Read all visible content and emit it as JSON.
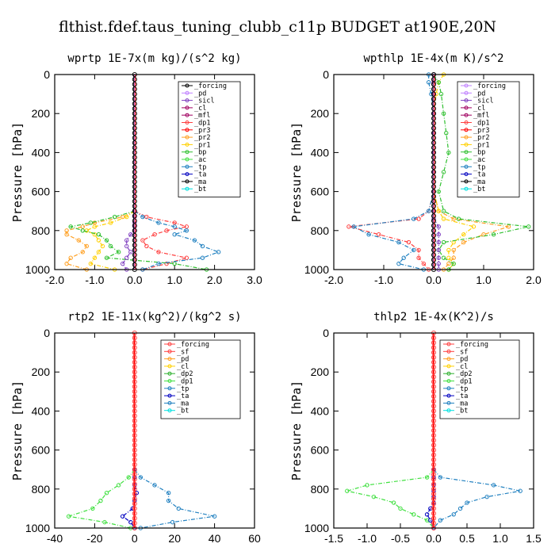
{
  "figure_title": "flthist.fdef.taus_tuning_clubb_c11p  BUDGET at190E,20N",
  "colors": {
    "_forcing": "#000000",
    "_pd": "#c080ff",
    "_sicl": "#8040c0",
    "_cl": "#ff80ff",
    "_mfl": "#a00060",
    "_dp1": "#ff4040",
    "_pr3": "#ff0000",
    "_pr2": "#ff9f20",
    "_pr1": "#ffd000",
    "_bp": "#30c030",
    "_ac": "#40e040",
    "_tp": "#2080c0",
    "_ta": "#0000c0",
    "_ma": "#000000",
    "_bt": "#00e0e0",
    "_sf": "#ff4040",
    "_dp2": "#30b030"
  },
  "chart_data": [
    {
      "type": "line",
      "title": "wprtp  1E-7x(m kg)/(s^2 kg)",
      "ylabel": "Pressure [hPa]",
      "xlim": [
        -2.0,
        3.0
      ],
      "ylim": [
        1000,
        0
      ],
      "xticks": [
        "-2.0",
        "-1.0",
        "0.0",
        "1.0",
        "2.0",
        "3.0"
      ],
      "yticks": [
        "0",
        "200",
        "400",
        "600",
        "800",
        "1000"
      ],
      "legend_entries": [
        "_forcing",
        "_pd",
        "_sicl",
        "_cl",
        "_mfl",
        "_dp1",
        "_pr3",
        "_pr2",
        "_pr1",
        "_bp",
        "_ac",
        "_tp",
        "_ta",
        "_ma",
        "_bt"
      ],
      "legend_colors": [
        "#000000",
        "#c080ff",
        "#8040c0",
        "#a00060",
        "#a00060",
        "#ff4040",
        "#ff0000",
        "#ff9f20",
        "#ffd000",
        "#30c030",
        "#40e040",
        "#2080c0",
        "#0000c0",
        "#000000",
        "#00e0e0"
      ],
      "pressure": [
        700,
        730,
        760,
        780,
        800,
        820,
        850,
        880,
        910,
        940,
        970,
        1000
      ],
      "series": [
        {
          "name": "_dp1",
          "color": "#ff4040",
          "values": [
            0,
            0.3,
            1.0,
            1.3,
            0.8,
            0.5,
            0.2,
            0.3,
            0.6,
            1.3,
            0.8,
            0.2
          ]
        },
        {
          "name": "_pr2",
          "color": "#ff9f20",
          "values": [
            0,
            -0.3,
            -1.0,
            -1.3,
            -1.7,
            -1.7,
            -1.4,
            -1.2,
            -1.3,
            -1.6,
            -1.7,
            -1.2
          ]
        },
        {
          "name": "_pr1",
          "color": "#ffd000",
          "values": [
            0,
            -0.2,
            -0.6,
            -1.0,
            -1.2,
            -1.0,
            -0.9,
            -0.8,
            -0.9,
            -1.0,
            -1.1,
            -0.5
          ]
        },
        {
          "name": "_bp",
          "color": "#30c030",
          "values": [
            0,
            -0.5,
            -1.1,
            -1.6,
            -1.3,
            -0.9,
            -0.7,
            -0.6,
            -0.4,
            -0.7,
            1.0,
            1.8
          ]
        },
        {
          "name": "_tp",
          "color": "#2080c0",
          "values": [
            0,
            0.2,
            0.6,
            1.0,
            1.3,
            1.0,
            1.5,
            1.7,
            2.1,
            1.7,
            0.6,
            0.2
          ]
        },
        {
          "name": "_sicl",
          "color": "#8040c0",
          "values": [
            0,
            0,
            0,
            0,
            0,
            -0.1,
            -0.2,
            -0.2,
            -0.1,
            -0.2,
            -0.3,
            -0.2
          ]
        }
      ]
    },
    {
      "type": "line",
      "title": "wpthlp  1E-4x(m K)/s^2",
      "ylabel": "Pressure [hPa]",
      "xlim": [
        -2.0,
        2.0
      ],
      "ylim": [
        1000,
        0
      ],
      "xticks": [
        "-2.0",
        "-1.0",
        "0.0",
        "1.0",
        "2.0"
      ],
      "yticks": [
        "0",
        "200",
        "400",
        "600",
        "800",
        "1000"
      ],
      "legend_entries": [
        "_forcing",
        "_pd",
        "_sicl",
        "_cl",
        "_mfl",
        "_dp1",
        "_pr3",
        "_pr2",
        "_pr1",
        "_bp",
        "_ac",
        "_tp",
        "_ta",
        "_ma",
        "_bt"
      ],
      "legend_colors": [
        "#c080ff",
        "#c080ff",
        "#8040c0",
        "#a00060",
        "#a00060",
        "#ff4040",
        "#ff0000",
        "#ff9f20",
        "#ffd000",
        "#30c030",
        "#40e040",
        "#2080c0",
        "#0000c0",
        "#000000",
        "#00e0e0"
      ],
      "pressure": [
        0,
        40,
        100,
        200,
        300,
        400,
        500,
        600,
        700,
        740,
        780,
        820,
        860,
        900,
        940,
        970,
        1000
      ],
      "series": [
        {
          "name": "_dp1",
          "color": "#ff4040",
          "values": [
            0,
            0,
            0,
            0,
            0,
            0,
            0,
            0,
            -0.1,
            -0.3,
            -1.7,
            -1.1,
            -0.5,
            -0.3,
            -0.3,
            -0.2,
            -0.1
          ]
        },
        {
          "name": "_pr2",
          "color": "#ff9f20",
          "values": [
            0,
            0,
            0,
            0,
            0,
            0,
            0,
            0,
            0.1,
            0.4,
            1.5,
            1.0,
            0.6,
            0.4,
            0.4,
            0.3,
            0.2
          ]
        },
        {
          "name": "_pr1",
          "color": "#ffd000",
          "values": [
            0.2,
            0.1,
            0.05,
            0,
            0,
            0,
            0,
            0,
            0.1,
            0.2,
            0.8,
            0.6,
            0.4,
            0.3,
            0.3,
            0.4,
            0.3
          ]
        },
        {
          "name": "_bp",
          "color": "#30c030",
          "values": [
            0,
            0.1,
            0.15,
            0.2,
            0.25,
            0.3,
            0.2,
            0.1,
            0.2,
            0.5,
            1.9,
            1.2,
            0.2,
            0.1,
            0.2,
            0.4,
            0.3
          ]
        },
        {
          "name": "_tp",
          "color": "#2080c0",
          "values": [
            -0.1,
            -0.1,
            -0.05,
            0,
            0,
            0,
            0,
            0,
            -0.1,
            -0.4,
            -1.6,
            -1.3,
            -0.7,
            -0.4,
            -0.6,
            -0.7,
            -0.2
          ]
        },
        {
          "name": "_sicl",
          "color": "#8040c0",
          "values": [
            0,
            0,
            0,
            0,
            0,
            0,
            0,
            0,
            0,
            0,
            0.1,
            0.1,
            0.1,
            0.1,
            0.1,
            0.1,
            0.1
          ]
        }
      ]
    },
    {
      "type": "line",
      "title": "rtp2  1E-11x(kg^2)/(kg^2 s)",
      "ylabel": "Pressure [hPa]",
      "xlim": [
        -40,
        60
      ],
      "ylim": [
        1000,
        0
      ],
      "xticks": [
        "-40",
        "-20",
        "0",
        "20",
        "40",
        "60"
      ],
      "yticks": [
        "0",
        "200",
        "400",
        "600",
        "800",
        "1000"
      ],
      "legend_entries": [
        "_forcing",
        "_sf",
        "_pd",
        "_cl",
        "_dp2",
        "_dp1",
        "_tp",
        "_ta",
        "_ma",
        "_bt"
      ],
      "legend_colors": [
        "#ff4040",
        "#ff4040",
        "#ff9f20",
        "#ffd000",
        "#30b030",
        "#40e040",
        "#2080c0",
        "#0000c0",
        "#2080c0",
        "#00e0e0"
      ],
      "pressure": [
        700,
        740,
        780,
        820,
        860,
        900,
        940,
        970,
        1000
      ],
      "series": [
        {
          "name": "_dp1",
          "color": "#40e040",
          "values": [
            0,
            -3,
            -8,
            -14,
            -17,
            -21,
            -33,
            -15,
            -2
          ]
        },
        {
          "name": "_tp",
          "color": "#2080c0",
          "values": [
            0,
            3,
            10,
            17,
            17,
            22,
            40,
            19,
            3
          ]
        },
        {
          "name": "_ta",
          "color": "#0000c0",
          "values": [
            0,
            0,
            0,
            1,
            0,
            -1,
            -6,
            -2,
            0
          ]
        }
      ]
    },
    {
      "type": "line",
      "title": "thlp2  1E-4x(K^2)/s",
      "ylabel": "Pressure [hPa]",
      "xlim": [
        -1.5,
        1.5
      ],
      "ylim": [
        1000,
        0
      ],
      "xticks": [
        "-1.5",
        "-1.0",
        "-0.5",
        "0.0",
        "0.5",
        "1.0",
        "1.5"
      ],
      "yticks": [
        "0",
        "200",
        "400",
        "600",
        "800",
        "1000"
      ],
      "legend_entries": [
        "_forcing",
        "_sf",
        "_pd",
        "_cl",
        "_dp2",
        "_dp1",
        "_tp",
        "_ta",
        "_ma",
        "_bt"
      ],
      "legend_colors": [
        "#ff4040",
        "#ff4040",
        "#ff9f20",
        "#ffd000",
        "#30b030",
        "#40e040",
        "#2080c0",
        "#0000c0",
        "#2080c0",
        "#00e0e0"
      ],
      "pressure": [
        700,
        740,
        780,
        810,
        840,
        870,
        900,
        930,
        960,
        1000
      ],
      "series": [
        {
          "name": "_dp1",
          "color": "#40e040",
          "values": [
            0,
            -0.1,
            -1.0,
            -1.3,
            -0.9,
            -0.6,
            -0.5,
            -0.3,
            -0.1,
            0
          ]
        },
        {
          "name": "_tp",
          "color": "#2080c0",
          "values": [
            0,
            0.1,
            0.9,
            1.3,
            0.8,
            0.5,
            0.4,
            0.3,
            0.1,
            0
          ]
        },
        {
          "name": "_ta",
          "color": "#0000c0",
          "values": [
            0,
            0,
            0,
            0,
            0,
            0,
            -0.05,
            -0.1,
            -0.05,
            0
          ]
        }
      ]
    }
  ]
}
